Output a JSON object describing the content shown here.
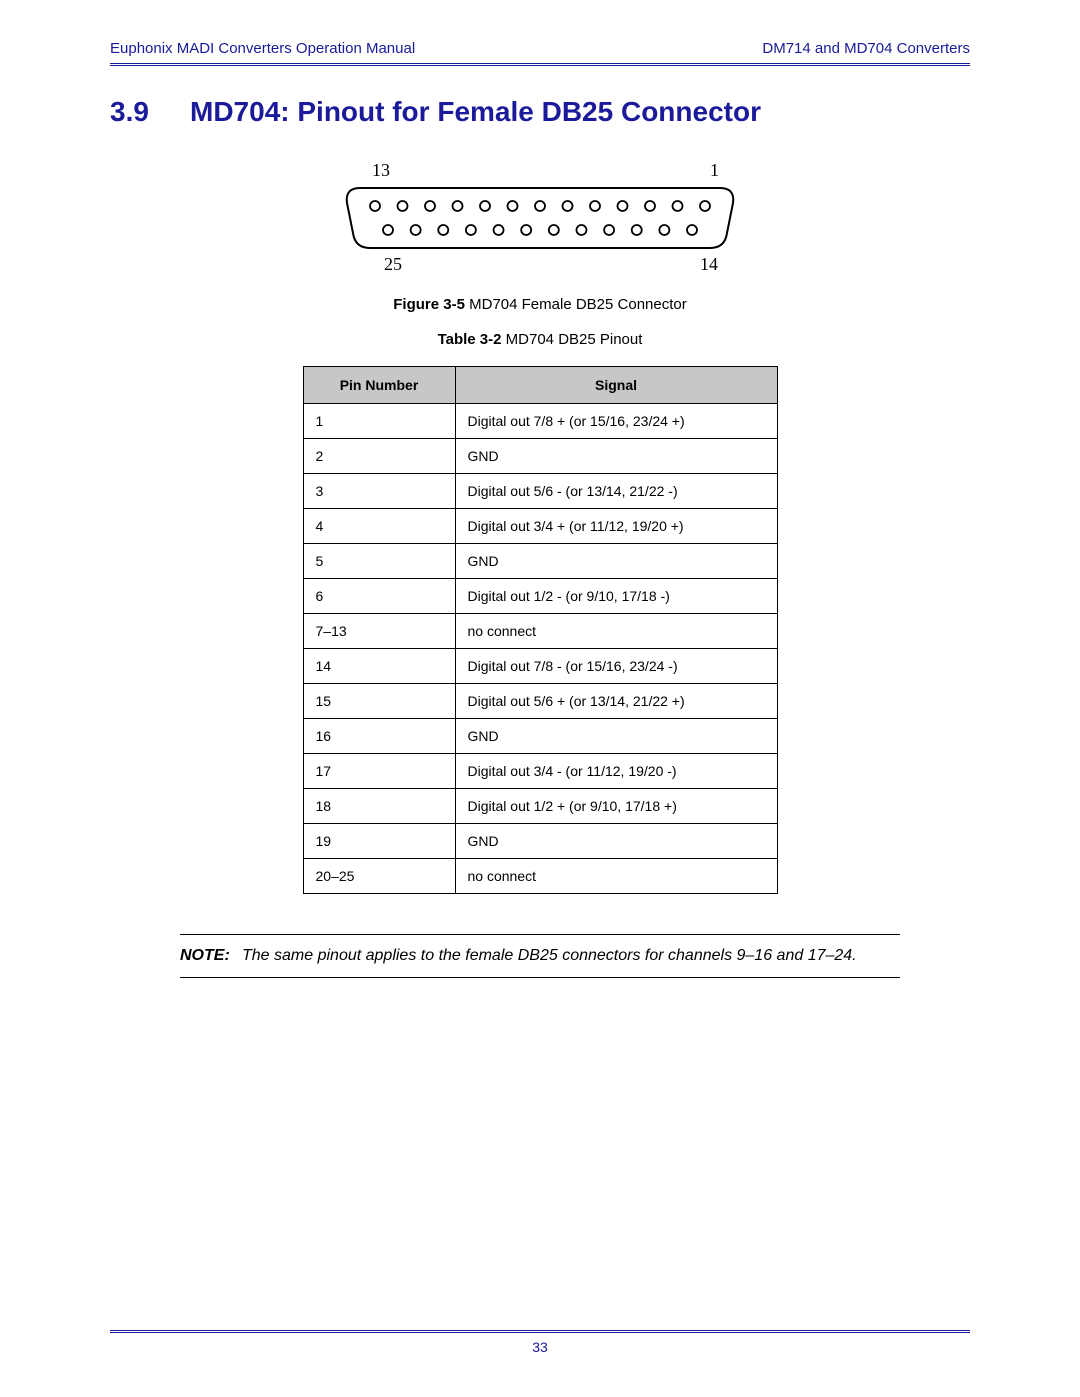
{
  "colors": {
    "accent": "#1a1a9a",
    "table_header_bg": "#c7c7c7",
    "text": "#000000",
    "background": "#ffffff"
  },
  "header": {
    "left": "Euphonix MADI Converters Operation Manual",
    "right": "DM714 and MD704 Converters"
  },
  "section": {
    "number": "3.9",
    "title": "MD704: Pinout for Female DB25 Connector"
  },
  "figure": {
    "top_left_label": "13",
    "top_right_label": "1",
    "bottom_left_label": "25",
    "bottom_right_label": "14",
    "top_pin_count": 13,
    "bottom_pin_count": 12,
    "caption_bold": "Figure 3-5",
    "caption_rest": " MD704 Female DB25 Connector"
  },
  "table": {
    "caption_bold": "Table 3-2",
    "caption_rest": "  MD704 DB25 Pinout",
    "columns": [
      "Pin Number",
      "Signal"
    ],
    "rows": [
      [
        "1",
        "Digital out 7/8 + (or 15/16, 23/24 +)"
      ],
      [
        "2",
        "GND"
      ],
      [
        "3",
        "Digital out 5/6 - (or 13/14, 21/22 -)"
      ],
      [
        "4",
        "Digital out 3/4 + (or 11/12, 19/20 +)"
      ],
      [
        "5",
        "GND"
      ],
      [
        "6",
        "Digital out 1/2 - (or 9/10, 17/18 -)"
      ],
      [
        "7–13",
        "no connect"
      ],
      [
        "14",
        "Digital out 7/8 - (or 15/16, 23/24 -)"
      ],
      [
        "15",
        "Digital out 5/6 + (or 13/14, 21/22 +)"
      ],
      [
        "16",
        "GND"
      ],
      [
        "17",
        "Digital out 3/4 - (or 11/12, 19/20 -)"
      ],
      [
        "18",
        "Digital out 1/2 + (or 9/10, 17/18 +)"
      ],
      [
        "19",
        "GND"
      ],
      [
        "20–25",
        "no connect"
      ]
    ]
  },
  "note": {
    "label": "NOTE:",
    "text": "The same pinout applies to the female DB25 connectors for channels 9–16 and 17–24."
  },
  "footer": {
    "page_number": "33"
  }
}
